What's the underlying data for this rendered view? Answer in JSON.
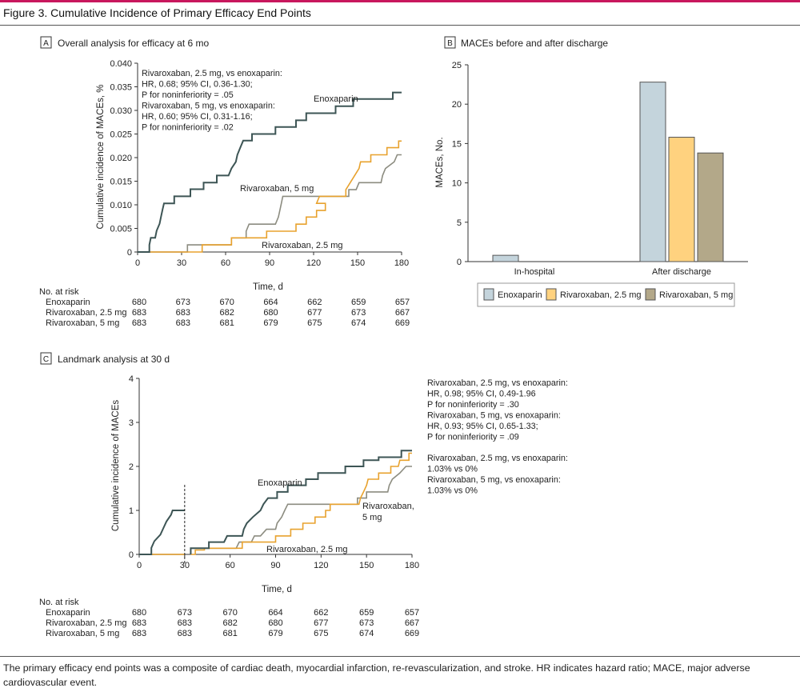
{
  "figure": {
    "title": "Figure 3. Cumulative Incidence of Primary Efficacy End Points",
    "caption": "The primary efficacy end points was a composite of cardiac death, myocardial infarction, re-revascularization, and stroke. HR indicates hazard ratio; MACE, major adverse cardiovascular event."
  },
  "colors": {
    "enoxaparin": "#3d5555",
    "riva25": "#e8a22e",
    "riva5": "#8c8c80",
    "accent": "#c8175d",
    "bar_enox": "#c4d4dc",
    "bar_r25": "#ffd27f",
    "bar_r5": "#b3a889"
  },
  "chart_data": [
    {
      "id": "A",
      "type": "line",
      "panel_letter": "A",
      "title": "Overall analysis for efficacy at 6 mo",
      "xlabel": "Time, d",
      "ylabel": "Cumulative incidence of MACEs, %",
      "xlim": [
        0,
        180
      ],
      "ylim": [
        0,
        0.04
      ],
      "xticks": [
        0,
        30,
        60,
        90,
        120,
        150,
        180
      ],
      "yticks": [
        0,
        0.005,
        0.01,
        0.015,
        0.02,
        0.025,
        0.03,
        0.035,
        0.04
      ],
      "ytick_labels": [
        "0",
        "0.005",
        "0.010",
        "0.015",
        "0.020",
        "0.025",
        "0.030",
        "0.035",
        "0.040"
      ],
      "series": [
        {
          "key": "enoxaparin",
          "name": "Enoxaparin",
          "step": true,
          "points": [
            [
              0,
              0
            ],
            [
              8,
              0
            ],
            [
              8,
              0.0015
            ],
            [
              9,
              0.003
            ],
            [
              12,
              0.003
            ],
            [
              13,
              0.0045
            ],
            [
              15,
              0.006
            ],
            [
              16,
              0.0075
            ],
            [
              17,
              0.009
            ],
            [
              18,
              0.0103
            ],
            [
              25,
              0.0103
            ],
            [
              25,
              0.0118
            ],
            [
              36,
              0.0118
            ],
            [
              36,
              0.0133
            ],
            [
              45,
              0.0133
            ],
            [
              45,
              0.0147
            ],
            [
              54,
              0.0147
            ],
            [
              54,
              0.0162
            ],
            [
              62,
              0.0162
            ],
            [
              64,
              0.0177
            ],
            [
              67,
              0.0191
            ],
            [
              68,
              0.0206
            ],
            [
              70,
              0.0221
            ],
            [
              72,
              0.0236
            ],
            [
              78,
              0.0236
            ],
            [
              78,
              0.025
            ],
            [
              94,
              0.025
            ],
            [
              94,
              0.0265
            ],
            [
              108,
              0.0265
            ],
            [
              108,
              0.0279
            ],
            [
              115,
              0.0279
            ],
            [
              115,
              0.0294
            ],
            [
              135,
              0.0294
            ],
            [
              135,
              0.0309
            ],
            [
              147,
              0.0309
            ],
            [
              147,
              0.0324
            ],
            [
              174,
              0.0324
            ],
            [
              174,
              0.0338
            ],
            [
              180,
              0.0338
            ]
          ]
        },
        {
          "key": "riva25",
          "name": "Rivaroxaban, 2.5 mg",
          "step": true,
          "points": [
            [
              0,
              0
            ],
            [
              44,
              0
            ],
            [
              44,
              0.0015
            ],
            [
              64,
              0.0015
            ],
            [
              64,
              0.003
            ],
            [
              88,
              0.003
            ],
            [
              88,
              0.0044
            ],
            [
              108,
              0.0044
            ],
            [
              108,
              0.0059
            ],
            [
              115,
              0.0059
            ],
            [
              115,
              0.0074
            ],
            [
              122,
              0.0074
            ],
            [
              122,
              0.0088
            ],
            [
              128,
              0.0088
            ],
            [
              128,
              0.0103
            ],
            [
              122,
              0.0103
            ],
            [
              124,
              0.0118
            ],
            [
              142,
              0.0118
            ],
            [
              142,
              0.0132
            ],
            [
              145,
              0.0147
            ],
            [
              148,
              0.0162
            ],
            [
              151,
              0.0177
            ],
            [
              152,
              0.0191
            ],
            [
              159,
              0.0191
            ],
            [
              159,
              0.0206
            ],
            [
              170,
              0.0206
            ],
            [
              170,
              0.0221
            ],
            [
              178,
              0.0221
            ],
            [
              178,
              0.0235
            ],
            [
              180,
              0.0235
            ]
          ]
        },
        {
          "key": "riva5",
          "name": "Rivaroxaban, 5 mg",
          "step": true,
          "points": [
            [
              0,
              0
            ],
            [
              34,
              0
            ],
            [
              34,
              0.0015
            ],
            [
              64,
              0.0015
            ],
            [
              64,
              0.003
            ],
            [
              74,
              0.003
            ],
            [
              74,
              0.0044
            ],
            [
              76,
              0.0059
            ],
            [
              94,
              0.0059
            ],
            [
              96,
              0.0074
            ],
            [
              97,
              0.0088
            ],
            [
              98,
              0.0103
            ],
            [
              99,
              0.0118
            ],
            [
              118,
              0.0118
            ],
            [
              118,
              0.0118
            ],
            [
              144,
              0.0118
            ],
            [
              144,
              0.0132
            ],
            [
              149,
              0.0132
            ],
            [
              151,
              0.0147
            ],
            [
              166,
              0.0147
            ],
            [
              167,
              0.0162
            ],
            [
              169,
              0.0177
            ],
            [
              175,
              0.0191
            ],
            [
              177,
              0.0206
            ],
            [
              180,
              0.0206
            ]
          ]
        }
      ],
      "annotation": [
        "Rivaroxaban, 2.5 mg, vs enoxaparin:",
        "HR, 0.68; 95% CI, 0.36-1.30;",
        "P for noninferiority = .05",
        "Rivaroxaban, 5 mg, vs enoxaparin:",
        "HR, 0.60; 95% CI, 0.31-1.16;",
        "P for noninferiority = .02"
      ],
      "line_labels": {
        "enoxaparin": "Enoxaparin",
        "riva5": "Rivaroxaban, 5 mg",
        "riva25": "Rivaroxaban, 2.5 mg"
      },
      "risk_table": {
        "header": "No. at risk",
        "rows": [
          {
            "label": "Enoxaparin",
            "values": [
              "680",
              "673",
              "670",
              "664",
              "662",
              "659",
              "657"
            ]
          },
          {
            "label": "Rivaroxaban, 2.5 mg",
            "values": [
              "683",
              "683",
              "682",
              "680",
              "677",
              "673",
              "667"
            ]
          },
          {
            "label": "Rivaroxaban, 5 mg",
            "values": [
              "683",
              "683",
              "681",
              "679",
              "675",
              "674",
              "669"
            ]
          }
        ]
      }
    },
    {
      "id": "B",
      "type": "bar",
      "panel_letter": "B",
      "title": "MACEs before and after discharge",
      "xlabel": "",
      "ylabel": "MACEs, No.",
      "ylim": [
        0,
        25
      ],
      "yticks": [
        0,
        5,
        10,
        15,
        20,
        25
      ],
      "categories": [
        "In-hospital",
        "After discharge"
      ],
      "series": [
        {
          "key": "enoxaparin",
          "name": "Enoxaparin",
          "values": [
            0.8,
            22.8
          ]
        },
        {
          "key": "riva25",
          "name": "Rivaroxaban, 2.5 mg",
          "values": [
            0,
            15.8
          ]
        },
        {
          "key": "riva5",
          "name": "Rivaroxaban, 5 mg",
          "values": [
            0,
            13.8
          ]
        }
      ],
      "legend": [
        "Enoxaparin",
        "Rivaroxaban, 2.5 mg",
        "Rivaroxaban, 5 mg"
      ]
    },
    {
      "id": "C",
      "type": "line",
      "panel_letter": "C",
      "title": "Landmark analysis at 30 d",
      "xlabel": "Time, d",
      "ylabel": "Cumulative incidence of MACEs",
      "xlim": [
        0,
        180
      ],
      "ylim": [
        0,
        4
      ],
      "xticks": [
        0,
        30,
        60,
        90,
        120,
        150,
        180
      ],
      "yticks": [
        0,
        1,
        2,
        3,
        4
      ],
      "ytick_labels": [
        "0",
        "1",
        "2",
        "3",
        "4"
      ],
      "landmark_day": 30,
      "series": [
        {
          "key": "enoxaparin",
          "name": "Enoxaparin",
          "step": true,
          "points": [
            [
              0,
              0
            ],
            [
              8,
              0
            ],
            [
              8,
              0.15
            ],
            [
              10,
              0.3
            ],
            [
              14,
              0.45
            ],
            [
              16,
              0.6
            ],
            [
              18,
              0.75
            ],
            [
              21,
              0.9
            ],
            [
              22,
              1.0
            ],
            [
              30,
              1.0
            ],
            [
              null,
              null
            ],
            [
              34,
              0
            ],
            [
              34,
              0.14
            ],
            [
              46,
              0.14
            ],
            [
              46,
              0.28
            ],
            [
              56,
              0.28
            ],
            [
              58,
              0.42
            ],
            [
              68,
              0.42
            ],
            [
              69,
              0.57
            ],
            [
              71,
              0.71
            ],
            [
              75,
              0.85
            ],
            [
              80,
              1.0
            ],
            [
              82,
              1.14
            ],
            [
              85,
              1.28
            ],
            [
              91,
              1.28
            ],
            [
              91,
              1.42
            ],
            [
              98,
              1.42
            ],
            [
              98,
              1.57
            ],
            [
              110,
              1.57
            ],
            [
              110,
              1.71
            ],
            [
              118,
              1.71
            ],
            [
              118,
              1.85
            ],
            [
              136,
              1.85
            ],
            [
              136,
              2.0
            ],
            [
              148,
              2.0
            ],
            [
              148,
              2.14
            ],
            [
              158,
              2.14
            ],
            [
              158,
              2.21
            ],
            [
              173,
              2.21
            ],
            [
              173,
              2.36
            ],
            [
              180,
              2.36
            ]
          ]
        },
        {
          "key": "riva25",
          "name": "Rivaroxaban, 2.5 mg",
          "step": true,
          "points": [
            [
              0,
              0
            ],
            [
              30,
              0
            ],
            [
              null,
              null
            ],
            [
              34,
              0
            ],
            [
              37,
              0
            ],
            [
              37,
              0.1
            ],
            [
              43,
              0.1
            ],
            [
              43,
              0.14
            ],
            [
              68,
              0.14
            ],
            [
              68,
              0.28
            ],
            [
              90,
              0.28
            ],
            [
              90,
              0.42
            ],
            [
              100,
              0.42
            ],
            [
              100,
              0.57
            ],
            [
              108,
              0.57
            ],
            [
              108,
              0.71
            ],
            [
              116,
              0.71
            ],
            [
              116,
              0.85
            ],
            [
              123,
              0.85
            ],
            [
              123,
              1.0
            ],
            [
              126,
              1.0
            ],
            [
              126,
              1.14
            ],
            [
              145,
              1.14
            ],
            [
              146,
              1.28
            ],
            [
              148,
              1.42
            ],
            [
              150,
              1.57
            ],
            [
              151,
              1.71
            ],
            [
              158,
              1.71
            ],
            [
              158,
              1.85
            ],
            [
              166,
              1.85
            ],
            [
              166,
              2.0
            ],
            [
              171,
              2.0
            ],
            [
              172,
              2.14
            ],
            [
              178,
              2.14
            ],
            [
              178,
              2.3
            ],
            [
              180,
              2.3
            ]
          ]
        },
        {
          "key": "riva5",
          "name": "Rivaroxaban, 5 mg",
          "step": true,
          "points": [
            [
              0,
              0
            ],
            [
              30,
              0
            ],
            [
              null,
              null
            ],
            [
              34,
              0
            ],
            [
              34,
              0.14
            ],
            [
              64,
              0.14
            ],
            [
              66,
              0.28
            ],
            [
              74,
              0.28
            ],
            [
              76,
              0.42
            ],
            [
              80,
              0.42
            ],
            [
              84,
              0.57
            ],
            [
              90,
              0.57
            ],
            [
              91,
              0.71
            ],
            [
              94,
              0.85
            ],
            [
              96,
              1.0
            ],
            [
              98,
              1.14
            ],
            [
              144,
              1.14
            ],
            [
              144,
              1.28
            ],
            [
              150,
              1.28
            ],
            [
              150,
              1.42
            ],
            [
              164,
              1.42
            ],
            [
              165,
              1.57
            ],
            [
              167,
              1.71
            ],
            [
              172,
              1.85
            ],
            [
              176,
              2.0
            ],
            [
              180,
              2.0
            ]
          ]
        }
      ],
      "annotation_stats": [
        "Rivaroxaban, 2.5 mg, vs enoxaparin:",
        "HR, 0.98; 95% CI, 0.49-1.96",
        "P for noninferiority = .30",
        "Rivaroxaban, 5 mg, vs enoxaparin:",
        "HR, 0.93; 95% CI, 0.65-1.33;",
        "P for noninferiority = .09"
      ],
      "annotation_rates": [
        "Rivaroxaban, 2.5 mg, vs enoxaparin:",
        "1.03% vs 0%",
        "Rivaroxaban, 5 mg, vs enoxaparin:",
        "1.03% vs 0%"
      ],
      "line_labels": {
        "enoxaparin": "Enoxaparin",
        "riva5_line1": "Rivaroxaban,",
        "riva5_line2": "5 mg",
        "riva25": "Rivaroxaban, 2.5 mg"
      },
      "risk_table": {
        "header": "No. at risk",
        "rows": [
          {
            "label": "Enoxaparin",
            "values": [
              "680",
              "673",
              "670",
              "664",
              "662",
              "659",
              "657"
            ]
          },
          {
            "label": "Rivaroxaban, 2.5 mg",
            "values": [
              "683",
              "683",
              "682",
              "680",
              "677",
              "673",
              "667"
            ]
          },
          {
            "label": "Rivaroxaban, 5 mg",
            "values": [
              "683",
              "683",
              "681",
              "679",
              "675",
              "674",
              "669"
            ]
          }
        ]
      }
    }
  ]
}
